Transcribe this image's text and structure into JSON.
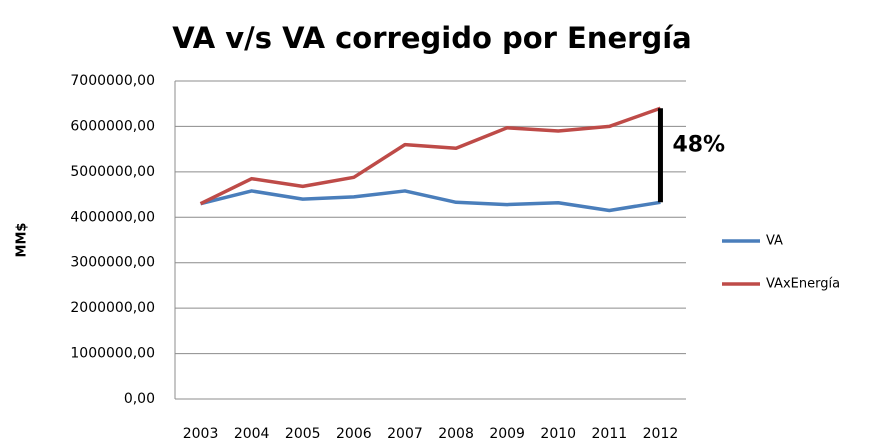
{
  "chart_data": {
    "type": "line",
    "title": "VA v/s VA corregido por Energía",
    "y_label": "MM$",
    "annotation": "48%",
    "categories": [
      "2003",
      "2004",
      "2005",
      "2006",
      "2007",
      "2008",
      "2009",
      "2010",
      "2011",
      "2012"
    ],
    "series": [
      {
        "name": "VA",
        "color": "#4a7ebb",
        "values": [
          4300000,
          4580000,
          4400000,
          4450000,
          4580000,
          4330000,
          4280000,
          4320000,
          4150000,
          4330000
        ]
      },
      {
        "name": "VAxEnergía",
        "color": "#be4b48",
        "values": [
          4300000,
          4850000,
          4680000,
          4880000,
          5600000,
          5520000,
          5970000,
          5900000,
          6000000,
          6400000
        ]
      }
    ],
    "ylim": [
      0,
      7000000
    ],
    "yticks": [
      {
        "value": 0,
        "label": "0,00"
      },
      {
        "value": 1000000,
        "label": "1000000,00"
      },
      {
        "value": 2000000,
        "label": "2000000,00"
      },
      {
        "value": 3000000,
        "label": "3000000,00"
      },
      {
        "value": 4000000,
        "label": "4000000,00"
      },
      {
        "value": 5000000,
        "label": "5000000,00"
      },
      {
        "value": 6000000,
        "label": "6000000,00"
      },
      {
        "value": 7000000,
        "label": "7000000,00"
      }
    ],
    "grid": true,
    "legend": "right"
  }
}
